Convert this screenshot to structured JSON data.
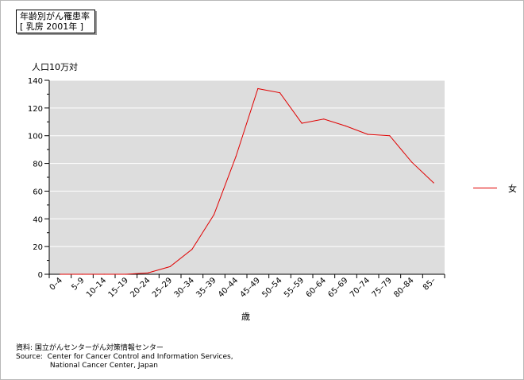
{
  "chart_data": {
    "type": "line",
    "title": "年齢別がん罹患率",
    "subtitle": "[ 乳房 2001年 ]",
    "ylabel": "人口10万対",
    "xlabel": "歳",
    "categories": [
      "0–4",
      "5–9",
      "10–14",
      "15–19",
      "20–24",
      "25–29",
      "30–34",
      "35–39",
      "40–44",
      "45–49",
      "50–54",
      "55–59",
      "60–64",
      "65–69",
      "70–74",
      "75–79",
      "80–84",
      "85–"
    ],
    "series": [
      {
        "name": "女",
        "color": "#e00000",
        "values": [
          0,
          0,
          0,
          0,
          1,
          5.5,
          18,
          43,
          85,
          134,
          131,
          109,
          112,
          107,
          101,
          100,
          81,
          66
        ]
      }
    ],
    "ylim": [
      0,
      140
    ],
    "yticks": [
      0,
      20,
      40,
      60,
      80,
      100,
      120,
      140
    ],
    "grid": true,
    "plot_background": "#dddddd",
    "legend": "right"
  },
  "source": {
    "line1": "資料: 国立がんセンターがん対策情報センター",
    "line2": "Source:  Center for Cancer Control and Information Services,",
    "line3": "               National Cancer Center, Japan"
  }
}
